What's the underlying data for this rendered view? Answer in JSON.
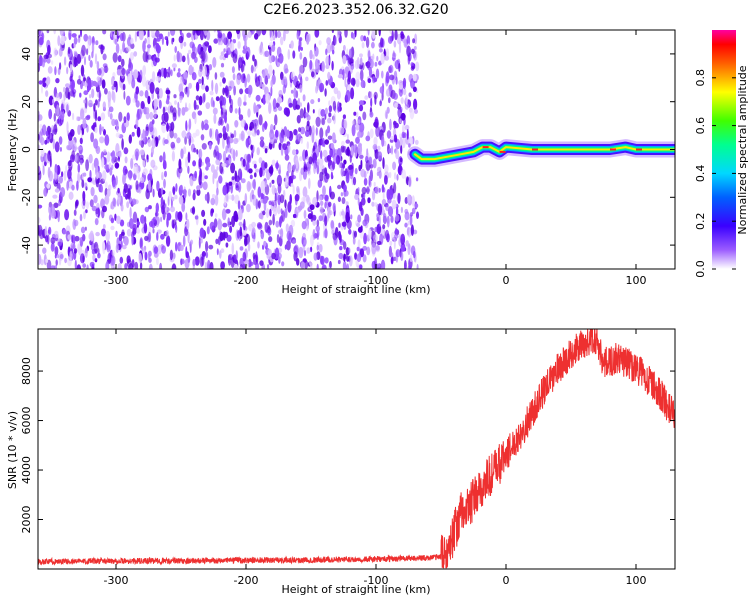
{
  "title": "C2E6.2023.352.06.32.G20",
  "chart_data": [
    {
      "type": "heatmap",
      "xlabel": "Height of straight line (km)",
      "ylabel": "Frequency (Hz)",
      "xlim": [
        -360,
        130
      ],
      "ylim": [
        -50,
        50
      ],
      "xticks": [
        -300,
        -200,
        -100,
        0,
        100
      ],
      "yticks": [
        -40,
        -20,
        0,
        20,
        40
      ],
      "noise_region_x": [
        -360,
        -68
      ],
      "signal_track": {
        "x": [
          -70,
          -65,
          -55,
          -45,
          -35,
          -25,
          -18,
          -12,
          -5,
          0,
          20,
          50,
          80,
          92,
          100,
          110,
          130
        ],
        "freq": [
          -2,
          -4,
          -4,
          -3,
          -2,
          -1,
          1,
          1,
          -1,
          1,
          0,
          0,
          0,
          1,
          0,
          0,
          0
        ]
      },
      "colorbar": {
        "label": "Normalized spectral amplitude",
        "range": [
          0.0,
          1.0
        ],
        "ticks": [
          "0.0",
          "0.2",
          "0.4",
          "0.6",
          "0.8"
        ],
        "colormap": "rainbow"
      },
      "grid": false
    },
    {
      "type": "line",
      "xlabel": "Height of straight line (km)",
      "ylabel": "SNR (10 * v/v)",
      "xlim": [
        -360,
        130
      ],
      "ylim": [
        0,
        9700
      ],
      "xticks": [
        -300,
        -200,
        -100,
        0,
        100
      ],
      "yticks": [
        2000,
        4000,
        6000,
        8000
      ],
      "color": "#ee3030",
      "series": [
        {
          "x": [
            -360,
            -300,
            -250,
            -200,
            -150,
            -100,
            -80,
            -60,
            -50,
            -45,
            -40,
            -35,
            -30,
            -25,
            -20,
            -15,
            -10,
            -5,
            0,
            5,
            10,
            15,
            20,
            25,
            30,
            35,
            40,
            45,
            50,
            55,
            60,
            65,
            70,
            75,
            80,
            85,
            90,
            95,
            100,
            105,
            110,
            115,
            120,
            125,
            130
          ],
          "values": [
            300,
            320,
            330,
            350,
            370,
            400,
            420,
            450,
            500,
            600,
            1500,
            2200,
            2400,
            2800,
            3100,
            3600,
            3900,
            4200,
            4600,
            5000,
            5400,
            5800,
            6300,
            6800,
            7300,
            7700,
            8100,
            8400,
            8700,
            8900,
            9100,
            9200,
            9300,
            8300,
            8400,
            8500,
            8400,
            8300,
            8100,
            7900,
            7600,
            7300,
            7000,
            6500,
            6200
          ]
        }
      ],
      "grid": false
    }
  ]
}
